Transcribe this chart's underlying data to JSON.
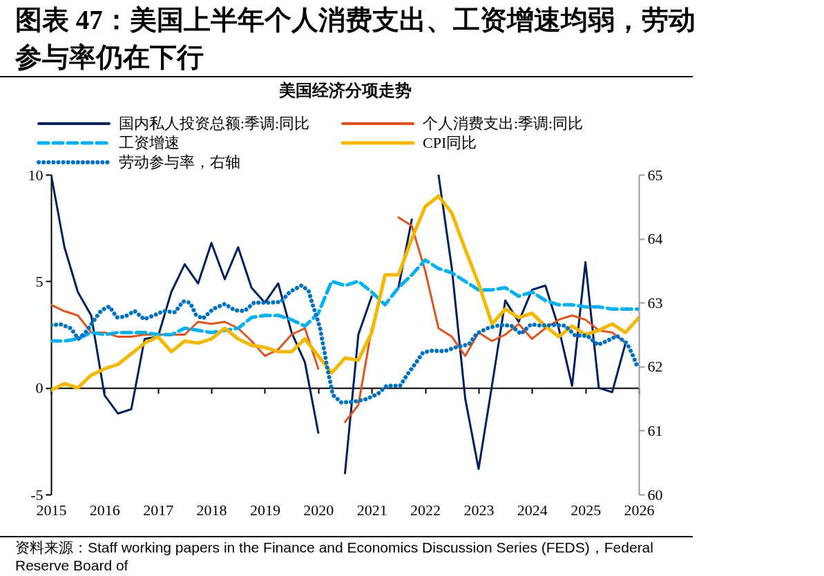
{
  "chart_data": {
    "type": "line",
    "title": "图表 47：美国上半年个人消费支出、工资增速均弱，劳动参与率仍在下行",
    "subtitle": "美国经济分项走势",
    "annotations": [
      "资料来源：Staff working papers in the Finance and Economics Discussion Series (FEDS)，Federal Reserve Board of"
    ],
    "x": [
      2015,
      2015.25,
      2015.5,
      2015.75,
      2016,
      2016.25,
      2016.5,
      2016.75,
      2017,
      2017.25,
      2017.5,
      2017.75,
      2018,
      2018.25,
      2018.5,
      2018.75,
      2019,
      2019.25,
      2019.5,
      2019.75,
      2020,
      2020.25,
      2020.5,
      2020.75,
      2021,
      2021.25,
      2021.5,
      2021.75,
      2022,
      2022.25,
      2022.5,
      2022.75,
      2023,
      2023.25,
      2023.5,
      2023.75,
      2024,
      2024.25,
      2024.5,
      2024.75,
      2025,
      2025.25,
      2025.5,
      2025.75,
      2026
    ],
    "xlim": [
      2015,
      2026
    ],
    "xticks": [
      2015,
      2016,
      2017,
      2018,
      2019,
      2020,
      2021,
      2022,
      2023,
      2024,
      2025,
      2026
    ],
    "ylim": [
      -5,
      10
    ],
    "yticks": [
      -5,
      0,
      5,
      10
    ],
    "y2lim": [
      60,
      65
    ],
    "y2ticks": [
      60,
      61,
      62,
      63,
      64,
      65
    ],
    "legend": "top",
    "series": [
      {
        "name": "国内私人投资总额:季调:同比",
        "color": "#002060",
        "line_style": "solid",
        "values": [
          10,
          6.6,
          4.5,
          3.4,
          -0.35,
          -1.2,
          -1.0,
          2.3,
          2.4,
          4.5,
          5.8,
          4.9,
          6.8,
          5.1,
          6.6,
          4.7,
          4.0,
          4.9,
          2.6,
          1.2,
          -2.1,
          null,
          -4.0,
          2.5,
          4.3,
          null,
          4.7,
          7.9,
          null,
          10,
          5.6,
          -0.5,
          -3.8,
          0.1,
          4.1,
          3.1,
          4.6,
          4.8,
          2.8,
          0.1,
          5.9,
          0.0,
          -0.2,
          2.1,
          null
        ]
      },
      {
        "name": "个人消费支出:季调:同比",
        "color": "#e0531f",
        "line_style": "solid",
        "values": [
          3.9,
          3.6,
          3.4,
          2.6,
          2.6,
          2.4,
          2.4,
          2.5,
          2.5,
          2.5,
          2.5,
          3.1,
          3.0,
          3.1,
          2.8,
          2.2,
          1.5,
          1.8,
          2.5,
          2.8,
          0.9,
          null,
          -1.6,
          -0.8,
          2.8,
          null,
          8.0,
          7.6,
          5.5,
          2.8,
          2.4,
          1.5,
          2.6,
          2.2,
          2.5,
          3.0,
          2.3,
          2.8,
          3.2,
          3.4,
          3.2,
          2.7,
          2.6,
          2.1,
          null
        ]
      },
      {
        "name": "工资增速",
        "color": "#00b0f0",
        "line_style": "dashed",
        "values": [
          2.2,
          2.2,
          2.3,
          2.6,
          2.5,
          2.6,
          2.6,
          2.6,
          2.5,
          2.5,
          2.8,
          2.7,
          2.6,
          2.7,
          2.8,
          3.3,
          3.4,
          3.4,
          3.2,
          2.9,
          3.5,
          5.0,
          4.8,
          5.0,
          4.5,
          3.9,
          4.7,
          5.3,
          6.0,
          5.6,
          5.4,
          5.0,
          4.6,
          4.6,
          4.7,
          4.3,
          4.5,
          4.1,
          3.9,
          3.9,
          3.8,
          3.8,
          3.7,
          3.7,
          3.7
        ]
      },
      {
        "name": "CPI同比",
        "color": "#f5b800",
        "line_style": "solid",
        "values": [
          -0.1,
          0.2,
          0.0,
          0.6,
          0.9,
          1.1,
          1.6,
          2.1,
          2.4,
          1.7,
          2.2,
          2.1,
          2.3,
          2.8,
          2.3,
          2.0,
          1.9,
          1.7,
          1.7,
          2.3,
          1.5,
          0.7,
          1.4,
          1.3,
          2.6,
          5.3,
          5.3,
          7.0,
          8.5,
          9.0,
          8.2,
          6.5,
          4.9,
          3.0,
          3.7,
          3.3,
          3.5,
          2.9,
          2.4,
          2.9,
          2.5,
          2.7,
          3.0,
          2.6,
          3.3
        ]
      },
      {
        "name": "劳动参与率，右轴",
        "color": "#0070c0",
        "line_style": "dotted",
        "axis": "y2",
        "x": [
          2015.0,
          2015.18,
          2015.37,
          2015.51,
          2015.66,
          2015.8,
          2015.94,
          2016.09,
          2016.23,
          2016.38,
          2016.56,
          2016.74,
          2016.92,
          2017.11,
          2017.32,
          2017.47,
          2017.6,
          2017.71,
          2017.84,
          2018.03,
          2018.25,
          2018.44,
          2018.62,
          2018.8,
          2019.05,
          2019.3,
          2019.47,
          2019.69,
          2019.82,
          2019.89,
          2019.97,
          2020.04,
          2020.08,
          2020.13,
          2020.17,
          2020.22,
          2020.27,
          2020.43,
          2020.66,
          2020.89,
          2021.11,
          2021.28,
          2021.53,
          2021.67,
          2021.82,
          2021.96,
          2022.14,
          2022.36,
          2022.57,
          2022.82,
          2022.97,
          2023.17,
          2023.4,
          2023.61,
          2023.79,
          2023.98,
          2024.17,
          2024.41,
          2024.62,
          2024.8,
          2025.04,
          2025.23,
          2025.4,
          2025.59,
          2025.78,
          2025.89,
          2025.98
        ],
        "values": [
          62.65,
          62.66,
          62.6,
          62.43,
          62.55,
          62.72,
          62.88,
          62.94,
          62.77,
          62.78,
          62.87,
          62.74,
          62.8,
          62.87,
          62.85,
          63.02,
          63.0,
          62.81,
          62.75,
          62.9,
          62.98,
          62.88,
          62.87,
          63.0,
          63.0,
          63.01,
          63.17,
          63.27,
          63.18,
          62.98,
          62.78,
          62.58,
          62.38,
          62.17,
          61.97,
          61.77,
          61.56,
          61.44,
          61.45,
          61.49,
          61.57,
          61.7,
          61.7,
          61.88,
          62.05,
          62.22,
          62.25,
          62.24,
          62.3,
          62.35,
          62.52,
          62.6,
          62.65,
          62.64,
          62.51,
          62.66,
          62.64,
          62.65,
          62.64,
          62.49,
          62.48,
          62.34,
          62.4,
          62.48,
          62.36,
          62.17,
          61.98
        ]
      }
    ]
  }
}
